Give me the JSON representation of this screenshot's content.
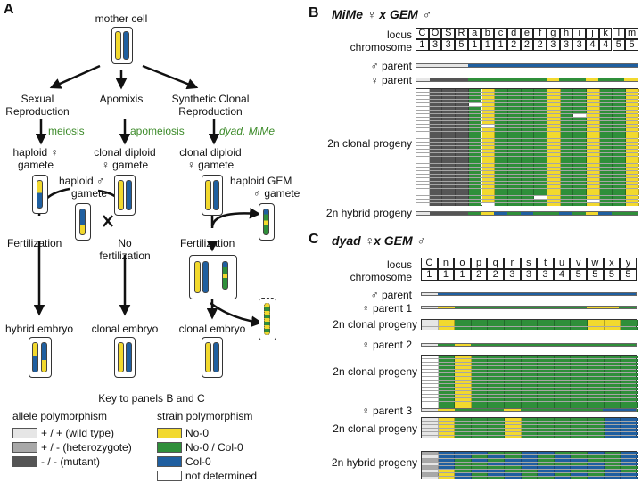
{
  "panelA": {
    "letter": "A",
    "mother": "mother cell",
    "sexual": [
      "Sexual",
      "Reproduction"
    ],
    "apomixis": "Apomixis",
    "synthetic": [
      "Synthetic Clonal",
      "Reproduction"
    ],
    "meiosis": "meiosis",
    "apomeiosis": "apomeiosis",
    "dyad": "dyad, MiMe",
    "haploid_f": [
      "haploid ♀",
      "gamete"
    ],
    "clonal_dip1": [
      "clonal diploid",
      "♀ gamete"
    ],
    "clonal_dip2": [
      "clonal diploid",
      "♀ gamete"
    ],
    "haploid_m": [
      "haploid ♂",
      "gamete"
    ],
    "haploid_gem": [
      "haploid GEM",
      "♂ gamete"
    ],
    "fert1": "Fertilization",
    "nofert": [
      "No",
      "fertilization"
    ],
    "fert2": "Fertilization",
    "hybrid_embryo": "hybrid embryo",
    "clonal_embryo1": "clonal embryo",
    "clonal_embryo2": "clonal embryo",
    "key_title": "Key to panels B and C",
    "allele_title": "allele polymorphism",
    "strain_title": "strain polymorphism",
    "allele_items": [
      {
        "label": "+ / +  (wild type)",
        "color": "#e6e6e6"
      },
      {
        "label": "+ / -  (heterozygote)",
        "color": "#a8a8a8"
      },
      {
        "label": "- / -  (mutant)",
        "color": "#555555"
      }
    ],
    "strain_items": [
      {
        "label": "No-0",
        "color": "#f2d92e"
      },
      {
        "label": "No-0 / Col-0",
        "color": "#2f8f3a"
      },
      {
        "label": "Col-0",
        "color": "#1f5fa0"
      },
      {
        "label": "not determined",
        "color": "#ffffff"
      }
    ]
  },
  "panelB": {
    "letter": "B",
    "title": "MiMe ♀ x GEM ♂",
    "locus_label": "locus",
    "chrom_label": "chromosome",
    "loci": [
      "C",
      "O",
      "S",
      "R",
      "a",
      "b",
      "c",
      "d",
      "e",
      "f",
      "g",
      "h",
      "i",
      "j",
      "k",
      "l",
      "m"
    ],
    "chromosomes": [
      "1",
      "3",
      "3",
      "5",
      "1",
      "1",
      "1",
      "2",
      "2",
      "2",
      "3",
      "3",
      "3",
      "4",
      "4",
      "5",
      "5"
    ],
    "male_parent": "♂ parent",
    "female_parent": "♀ parent",
    "clonal": "2n clonal progeny",
    "hybrid": "2n hybrid progeny"
  },
  "panelC": {
    "letter": "C",
    "title": "dyad ♀x GEM ♂",
    "locus_label": "locus",
    "chrom_label": "chromosome",
    "loci": [
      "C",
      "n",
      "o",
      "p",
      "q",
      "r",
      "s",
      "t",
      "u",
      "v",
      "w",
      "x",
      "y"
    ],
    "chromosomes": [
      "1",
      "1",
      "1",
      "2",
      "2",
      "3",
      "3",
      "3",
      "4",
      "5",
      "5",
      "5",
      "5"
    ],
    "male_parent": "♂ parent",
    "parent1": "♀ parent 1",
    "parent2": "♀ parent 2",
    "parent3": "♀ parent 3",
    "clonal1": "2n clonal progeny",
    "clonal2": "2n clonal progeny",
    "clonal3": "2n clonal progeny",
    "hybrid": "2n hybrid progeny"
  },
  "colors": {
    "yellow": "#f2d92e",
    "green": "#2f8f3a",
    "blue": "#1f5fa0",
    "dark": "#555555",
    "light": "#e6e6e6",
    "accent_green": "#3d8b2a"
  }
}
